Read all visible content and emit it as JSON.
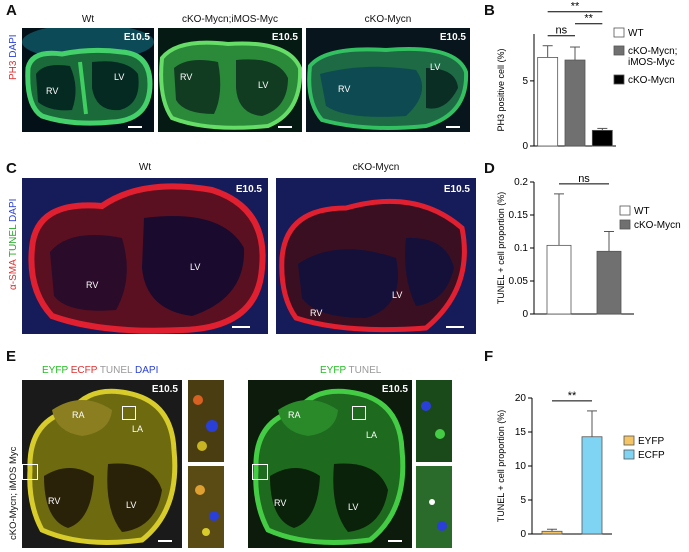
{
  "panels": {
    "A": {
      "label": "A",
      "side_label_1": "PH3",
      "side_label_2": "DAPI",
      "titles": [
        "Wt",
        "cKO-Mycn;iMOS-Myc",
        "cKO-Mycn"
      ],
      "stage": "E10.5",
      "chambers": [
        "RV",
        "LV"
      ],
      "colors": {
        "label_1": "#e03030",
        "label_2": "#2a3fd8"
      }
    },
    "B": {
      "label": "B",
      "legend": [
        "WT",
        "cKO-Mycn;",
        "iMOS-Myc",
        "cKO-Mycn"
      ]
    },
    "C": {
      "label": "C",
      "side_label_1": "α-SMA",
      "side_label_2": "TUNEL",
      "side_label_3": "DAPI",
      "titles": [
        "Wt",
        "cKO-Mycn"
      ],
      "stage": "E10.5",
      "chambers": [
        "RV",
        "LV"
      ],
      "colors": {
        "label_1": "#e03030",
        "label_2": "#22aa22",
        "label_3": "#2a3fd8"
      }
    },
    "D": {
      "label": "D",
      "legend": [
        "WT",
        "cKO-Mycn"
      ]
    },
    "E": {
      "label": "E",
      "side_label": "cKO-Mycn; iMOS Myc",
      "left_title": [
        "EYFP",
        "ECFP",
        "TUNEL",
        "DAPI"
      ],
      "right_title": [
        "EYFP",
        "TUNEL"
      ],
      "stage": "E10.5",
      "chambers": [
        "RA",
        "LA",
        "RV",
        "LV"
      ],
      "colors": {
        "eyfp": "#22bb22",
        "ecfp": "#e03030",
        "tunel": "#999999",
        "dapi": "#2a3fd8"
      }
    },
    "F": {
      "label": "F",
      "legend": [
        "EYFP",
        "ECFP"
      ]
    }
  },
  "chart_data": [
    {
      "id": "B",
      "type": "bar",
      "categories": [
        "WT",
        "cKO-Mycn; iMOS-Myc",
        "cKO-Mycn"
      ],
      "values": [
        6.8,
        6.6,
        1.2
      ],
      "errors": [
        0.9,
        1.0,
        0.15
      ],
      "colors": [
        "#ffffff",
        "#707070",
        "#000000"
      ],
      "ylabel": "PH3 positive cell (%)",
      "ylim": [
        0,
        8.6
      ],
      "yticks": [
        0,
        5
      ],
      "significance": [
        {
          "from": 0,
          "to": 2,
          "label": "**"
        },
        {
          "from": 0,
          "to": 1,
          "label": "ns"
        },
        {
          "from": 1,
          "to": 2,
          "label": "**"
        }
      ]
    },
    {
      "id": "D",
      "type": "bar",
      "categories": [
        "WT",
        "cKO-Mycn"
      ],
      "values": [
        0.104,
        0.095
      ],
      "errors": [
        0.078,
        0.03
      ],
      "colors": [
        "#ffffff",
        "#707070"
      ],
      "ylabel": "TUNEL + cell proportion (%)",
      "ylim": [
        0,
        0.2
      ],
      "yticks": [
        "0",
        "0.05",
        "0.1",
        "0.15",
        "0.2"
      ],
      "significance": [
        {
          "from": 0,
          "to": 1,
          "label": "ns"
        }
      ]
    },
    {
      "id": "F",
      "type": "bar",
      "categories": [
        "EYFP",
        "ECFP"
      ],
      "values": [
        0.4,
        14.3
      ],
      "errors": [
        0.3,
        3.8
      ],
      "colors": [
        "#f5c565",
        "#7fd4f4"
      ],
      "ylabel": "TUNEL + cell proportion (%)",
      "ylim": [
        0,
        20
      ],
      "yticks": [
        "0",
        "5",
        "10",
        "15",
        "20"
      ],
      "significance": [
        {
          "from": 0,
          "to": 1,
          "label": "**"
        }
      ]
    }
  ]
}
